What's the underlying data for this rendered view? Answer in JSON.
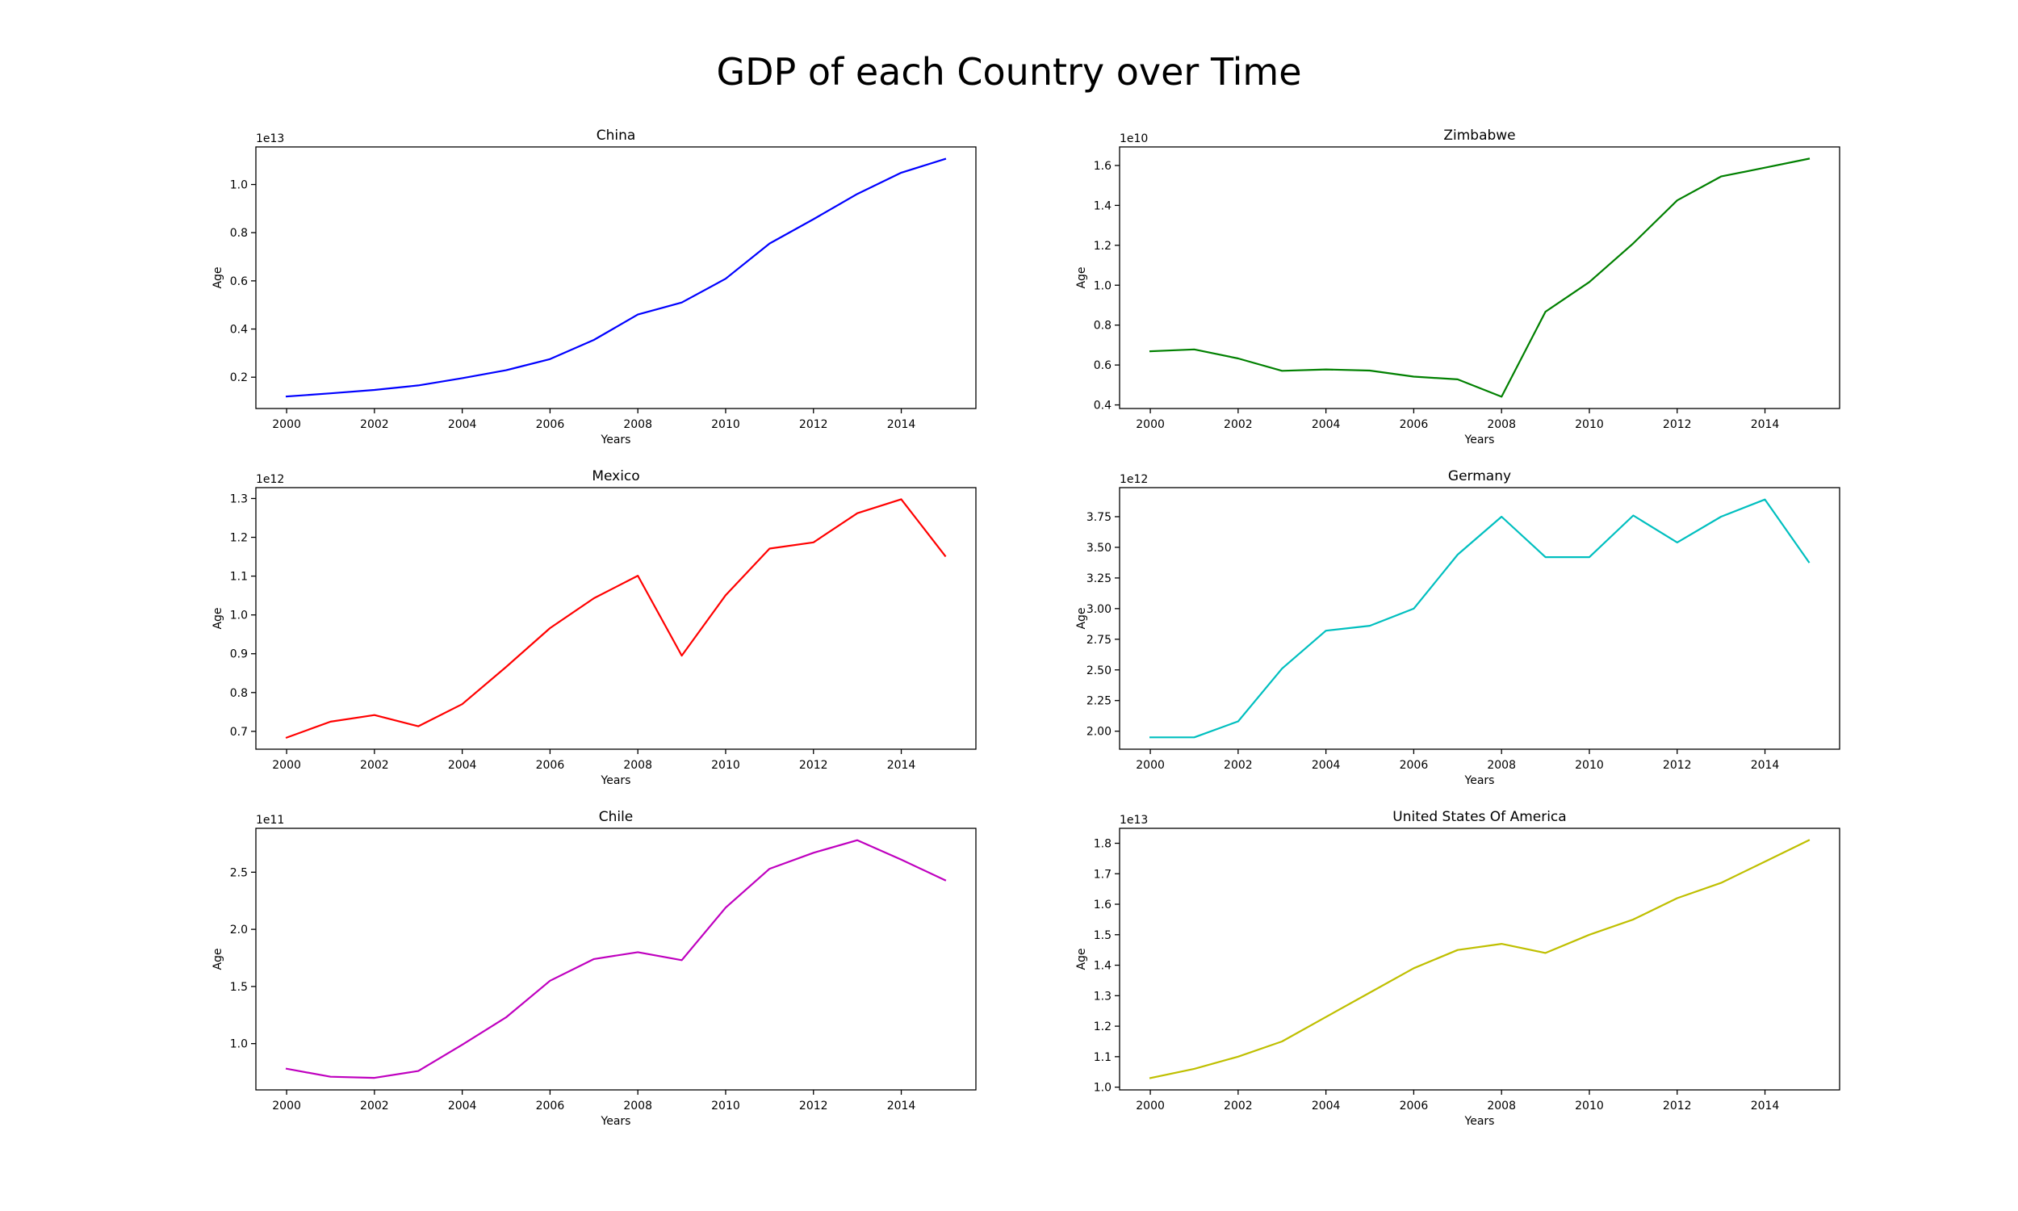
{
  "figure_title": "GDP of each Country over Time",
  "chart_data": [
    {
      "type": "line",
      "title": "China",
      "xlabel": "Years",
      "ylabel": "Age",
      "color": "#0000ff",
      "x": [
        2000,
        2001,
        2002,
        2003,
        2004,
        2005,
        2006,
        2007,
        2008,
        2009,
        2010,
        2011,
        2012,
        2013,
        2014,
        2015
      ],
      "y": [
        0.12,
        0.133,
        0.147,
        0.166,
        0.196,
        0.229,
        0.275,
        0.355,
        0.46,
        0.51,
        0.609,
        0.755,
        0.856,
        0.961,
        1.049,
        1.106
      ],
      "exponent_label": "1e13",
      "xlim": [
        1999.3,
        2015.7
      ],
      "ylim": [
        0.07,
        1.156
      ],
      "xticks": [
        2000,
        2002,
        2004,
        2006,
        2008,
        2010,
        2012,
        2014
      ],
      "yticks": [
        0.2,
        0.4,
        0.6,
        0.8,
        1.0
      ],
      "ytick_labels": [
        "0.2",
        "0.4",
        "0.6",
        "0.8",
        "1.0"
      ],
      "grid": false
    },
    {
      "type": "line",
      "title": "Zimbabwe",
      "xlabel": "Years",
      "ylabel": "Age",
      "color": "#008000",
      "x": [
        2000,
        2001,
        2002,
        2003,
        2004,
        2005,
        2006,
        2007,
        2008,
        2009,
        2010,
        2011,
        2012,
        2013,
        2014,
        2015
      ],
      "y": [
        0.669,
        0.678,
        0.633,
        0.571,
        0.578,
        0.572,
        0.542,
        0.528,
        0.441,
        0.867,
        1.016,
        1.21,
        1.425,
        1.545,
        1.589,
        1.634
      ],
      "exponent_label": "1e10",
      "xlim": [
        1999.3,
        2015.7
      ],
      "ylim": [
        0.382,
        1.693
      ],
      "xticks": [
        2000,
        2002,
        2004,
        2006,
        2008,
        2010,
        2012,
        2014
      ],
      "yticks": [
        0.4,
        0.6,
        0.8,
        1.0,
        1.2,
        1.4,
        1.6
      ],
      "ytick_labels": [
        "0.4",
        "0.6",
        "0.8",
        "1.0",
        "1.2",
        "1.4",
        "1.6"
      ],
      "grid": false
    },
    {
      "type": "line",
      "title": "Mexico",
      "xlabel": "Years",
      "ylabel": "Age",
      "color": "#ff0000",
      "x": [
        2000,
        2001,
        2002,
        2003,
        2004,
        2005,
        2006,
        2007,
        2008,
        2009,
        2010,
        2011,
        2012,
        2013,
        2014,
        2015
      ],
      "y": [
        0.684,
        0.725,
        0.742,
        0.713,
        0.77,
        0.866,
        0.966,
        1.043,
        1.101,
        0.895,
        1.051,
        1.171,
        1.187,
        1.262,
        1.298,
        1.152
      ],
      "exponent_label": "1e12",
      "xlim": [
        1999.3,
        2015.7
      ],
      "ylim": [
        0.654,
        1.328
      ],
      "xticks": [
        2000,
        2002,
        2004,
        2006,
        2008,
        2010,
        2012,
        2014
      ],
      "yticks": [
        0.7,
        0.8,
        0.9,
        1.0,
        1.1,
        1.2,
        1.3
      ],
      "ytick_labels": [
        "0.7",
        "0.8",
        "0.9",
        "1.0",
        "1.1",
        "1.2",
        "1.3"
      ],
      "grid": false
    },
    {
      "type": "line",
      "title": "Germany",
      "xlabel": "Years",
      "ylabel": "Age",
      "color": "#00bfbf",
      "x": [
        2000,
        2001,
        2002,
        2003,
        2004,
        2005,
        2006,
        2007,
        2008,
        2009,
        2010,
        2011,
        2012,
        2013,
        2014,
        2015
      ],
      "y": [
        1.95,
        1.95,
        2.08,
        2.51,
        2.82,
        2.86,
        3.0,
        3.44,
        3.75,
        3.42,
        3.42,
        3.76,
        3.54,
        3.75,
        3.89,
        3.38
      ],
      "exponent_label": "1e12",
      "xlim": [
        1999.3,
        2015.7
      ],
      "ylim": [
        1.853,
        3.987
      ],
      "xticks": [
        2000,
        2002,
        2004,
        2006,
        2008,
        2010,
        2012,
        2014
      ],
      "yticks": [
        2.0,
        2.25,
        2.5,
        2.75,
        3.0,
        3.25,
        3.5,
        3.75
      ],
      "ytick_labels": [
        "2.00",
        "2.25",
        "2.50",
        "2.75",
        "3.00",
        "3.25",
        "3.50",
        "3.75"
      ],
      "grid": false
    },
    {
      "type": "line",
      "title": "Chile",
      "xlabel": "Years",
      "ylabel": "Age",
      "color": "#bf00bf",
      "x": [
        2000,
        2001,
        2002,
        2003,
        2004,
        2005,
        2006,
        2007,
        2008,
        2009,
        2010,
        2011,
        2012,
        2013,
        2014,
        2015
      ],
      "y": [
        0.78,
        0.71,
        0.7,
        0.76,
        0.99,
        1.23,
        1.55,
        1.74,
        1.8,
        1.73,
        2.19,
        2.53,
        2.67,
        2.78,
        2.61,
        2.43
      ],
      "exponent_label": "1e11",
      "xlim": [
        1999.3,
        2015.7
      ],
      "ylim": [
        0.595,
        2.884
      ],
      "xticks": [
        2000,
        2002,
        2004,
        2006,
        2008,
        2010,
        2012,
        2014
      ],
      "yticks": [
        1.0,
        1.5,
        2.0,
        2.5
      ],
      "ytick_labels": [
        "1.0",
        "1.5",
        "2.0",
        "2.5"
      ],
      "grid": false
    },
    {
      "type": "line",
      "title": "United States Of America",
      "xlabel": "Years",
      "ylabel": "Age",
      "color": "#bfbf00",
      "x": [
        2000,
        2001,
        2002,
        2003,
        2004,
        2005,
        2006,
        2007,
        2008,
        2009,
        2010,
        2011,
        2012,
        2013,
        2014,
        2015
      ],
      "y": [
        1.03,
        1.06,
        1.1,
        1.15,
        1.23,
        1.31,
        1.39,
        1.45,
        1.47,
        1.44,
        1.5,
        1.55,
        1.62,
        1.67,
        1.74,
        1.81
      ],
      "exponent_label": "1e13",
      "xlim": [
        1999.3,
        2015.7
      ],
      "ylim": [
        0.991,
        1.849
      ],
      "xticks": [
        2000,
        2002,
        2004,
        2006,
        2008,
        2010,
        2012,
        2014
      ],
      "yticks": [
        1.0,
        1.1,
        1.2,
        1.3,
        1.4,
        1.5,
        1.6,
        1.7,
        1.8
      ],
      "ytick_labels": [
        "1.0",
        "1.1",
        "1.2",
        "1.3",
        "1.4",
        "1.5",
        "1.6",
        "1.7",
        "1.8"
      ],
      "grid": false
    }
  ]
}
